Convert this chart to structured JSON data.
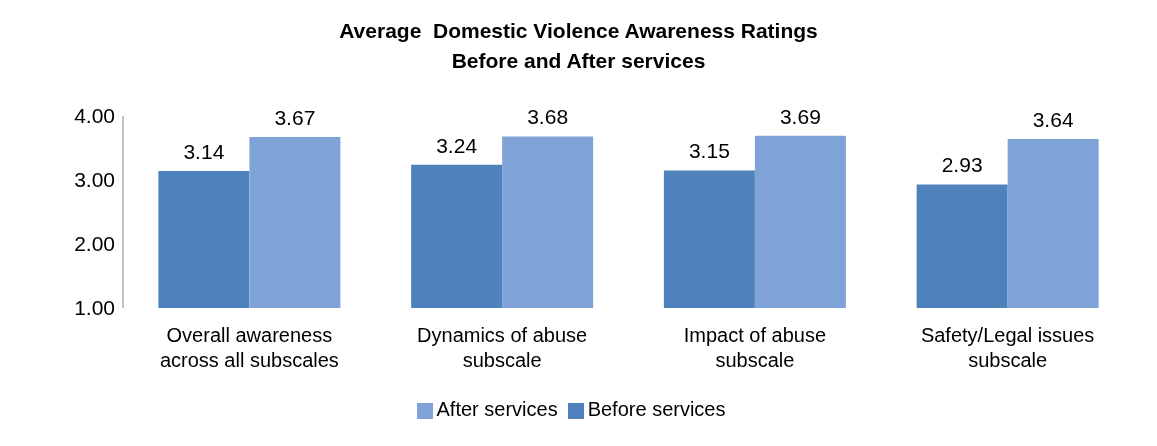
{
  "chart_data": {
    "type": "bar",
    "title": "Average  Domestic Violence Awareness Ratings",
    "subtitle": "Before and After services",
    "categories": [
      "Overall awareness across all subscales",
      "Dynamics of abuse subscale",
      "Impact of abuse subscale",
      "Safety/Legal issues subscale"
    ],
    "series": [
      {
        "name": "Before services",
        "color": "#4f81bd",
        "values": [
          3.14,
          3.24,
          3.15,
          2.93
        ]
      },
      {
        "name": "After services",
        "color": "#7fa3d6",
        "values": [
          3.67,
          3.68,
          3.69,
          3.64
        ]
      }
    ],
    "ylim": [
      1,
      4
    ],
    "yticks": [
      {
        "value": 1,
        "label": "1.00"
      },
      {
        "value": 2,
        "label": "2.00"
      },
      {
        "value": 3,
        "label": "3.00"
      },
      {
        "value": 4,
        "label": "4.00"
      }
    ],
    "data_labels": true,
    "legend": "bottom",
    "grid": false
  }
}
